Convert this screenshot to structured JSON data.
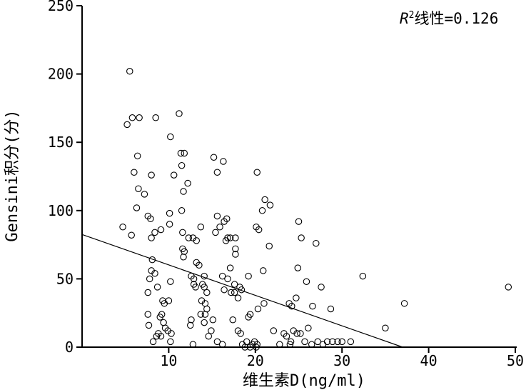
{
  "chart_data": {
    "type": "scatter",
    "xlabel": "维生素D(ng/ml)",
    "ylabel": "Gensini积分(分)",
    "xlim": [
      0,
      50
    ],
    "ylim": [
      0,
      250
    ],
    "x_ticks": [
      "10",
      "20",
      "30",
      "40",
      "50"
    ],
    "y_ticks": [
      "0",
      "50",
      "100",
      "150",
      "200",
      "250"
    ],
    "annotation": {
      "r": "R",
      "sup": "2",
      "rest": "线性=0.126"
    },
    "grid": false,
    "marker": "open-circle",
    "fit_line": {
      "x": [
        0,
        37
      ],
      "y": [
        82.5,
        0
      ]
    },
    "points": [
      [
        5.5,
        202
      ],
      [
        5.2,
        163
      ],
      [
        5.8,
        168
      ],
      [
        6.6,
        168
      ],
      [
        8.5,
        168
      ],
      [
        11.2,
        171
      ],
      [
        10.2,
        154
      ],
      [
        6.4,
        140
      ],
      [
        11.4,
        142
      ],
      [
        11.8,
        142
      ],
      [
        6,
        128
      ],
      [
        8,
        126
      ],
      [
        10.6,
        126
      ],
      [
        11.5,
        133
      ],
      [
        6.5,
        116
      ],
      [
        7.2,
        112
      ],
      [
        11.7,
        114
      ],
      [
        12.2,
        120
      ],
      [
        15.2,
        139
      ],
      [
        16.3,
        136
      ],
      [
        15.6,
        128
      ],
      [
        20.2,
        128
      ],
      [
        6.3,
        102
      ],
      [
        4.7,
        88
      ],
      [
        5.7,
        82
      ],
      [
        7.6,
        96
      ],
      [
        7.9,
        94
      ],
      [
        10.1,
        98
      ],
      [
        11.5,
        100
      ],
      [
        9.1,
        86
      ],
      [
        10.1,
        90
      ],
      [
        11.6,
        84
      ],
      [
        12.3,
        80
      ],
      [
        12.8,
        80
      ],
      [
        8,
        80
      ],
      [
        8.4,
        84
      ],
      [
        13.2,
        78
      ],
      [
        13.7,
        88
      ],
      [
        15.4,
        84
      ],
      [
        15.6,
        96
      ],
      [
        16.7,
        94
      ],
      [
        15.9,
        88
      ],
      [
        16.8,
        80
      ],
      [
        17.1,
        80
      ],
      [
        17.7,
        80
      ],
      [
        16.4,
        92
      ],
      [
        16.6,
        78
      ],
      [
        21.1,
        108
      ],
      [
        21.7,
        104
      ],
      [
        20.8,
        100
      ],
      [
        20.1,
        88
      ],
      [
        20.4,
        86
      ],
      [
        21.6,
        74
      ],
      [
        25,
        92
      ],
      [
        25.3,
        80
      ],
      [
        27,
        76
      ],
      [
        8.1,
        64
      ],
      [
        8,
        56
      ],
      [
        7.8,
        50
      ],
      [
        8.4,
        54
      ],
      [
        7.6,
        40
      ],
      [
        8.7,
        44
      ],
      [
        10.2,
        48
      ],
      [
        11.7,
        66
      ],
      [
        11.6,
        72
      ],
      [
        11.8,
        70
      ],
      [
        12.6,
        52
      ],
      [
        12.9,
        50
      ],
      [
        13.2,
        62
      ],
      [
        13.5,
        60
      ],
      [
        14.1,
        52
      ],
      [
        13.1,
        44
      ],
      [
        12.9,
        46
      ],
      [
        13.9,
        46
      ],
      [
        14.1,
        44
      ],
      [
        14.4,
        40
      ],
      [
        16.2,
        52
      ],
      [
        16.4,
        42
      ],
      [
        16.8,
        50
      ],
      [
        17.1,
        58
      ],
      [
        17.7,
        72
      ],
      [
        17.7,
        68
      ],
      [
        17.6,
        46
      ],
      [
        17.2,
        40
      ],
      [
        17.6,
        40
      ],
      [
        18.2,
        44
      ],
      [
        18.4,
        42
      ],
      [
        19.2,
        52
      ],
      [
        18,
        36
      ],
      [
        20.9,
        56
      ],
      [
        21,
        32
      ],
      [
        20.3,
        28
      ],
      [
        23.9,
        32
      ],
      [
        24.2,
        30
      ],
      [
        24.7,
        36
      ],
      [
        24.9,
        58
      ],
      [
        25.9,
        48
      ],
      [
        26.6,
        30
      ],
      [
        27.6,
        44
      ],
      [
        28.7,
        28
      ],
      [
        32.4,
        52
      ],
      [
        37.2,
        32
      ],
      [
        35,
        14
      ],
      [
        49.2,
        44
      ],
      [
        7.6,
        24
      ],
      [
        7.7,
        16
      ],
      [
        8.2,
        4
      ],
      [
        8.6,
        8
      ],
      [
        8.8,
        10
      ],
      [
        9.2,
        24
      ],
      [
        9.3,
        34
      ],
      [
        9.6,
        14
      ],
      [
        9.9,
        12
      ],
      [
        10,
        34
      ],
      [
        9.5,
        32
      ],
      [
        9,
        22
      ],
      [
        9.4,
        18
      ],
      [
        9.1,
        8
      ],
      [
        10.3,
        10
      ],
      [
        10.2,
        4
      ],
      [
        12.5,
        16
      ],
      [
        12.6,
        20
      ],
      [
        12.8,
        2
      ],
      [
        13.7,
        24
      ],
      [
        14.1,
        18
      ],
      [
        14.2,
        24
      ],
      [
        13.8,
        34
      ],
      [
        14.6,
        8
      ],
      [
        14.9,
        12
      ],
      [
        15.1,
        20
      ],
      [
        15.6,
        4
      ],
      [
        16.2,
        2
      ],
      [
        14.4,
        28
      ],
      [
        14.2,
        32
      ],
      [
        17.4,
        20
      ],
      [
        18,
        12
      ],
      [
        18.3,
        10
      ],
      [
        18.5,
        2
      ],
      [
        19,
        4
      ],
      [
        19.2,
        22
      ],
      [
        19.4,
        24
      ],
      [
        19.7,
        2
      ],
      [
        19.9,
        4
      ],
      [
        20.1,
        0
      ],
      [
        20.2,
        2
      ],
      [
        19.4,
        0
      ],
      [
        18.8,
        0
      ],
      [
        22.1,
        12
      ],
      [
        23.3,
        10
      ],
      [
        23.6,
        8
      ],
      [
        24.1,
        4
      ],
      [
        24.4,
        12
      ],
      [
        24.8,
        10
      ],
      [
        25.2,
        10
      ],
      [
        25.7,
        4
      ],
      [
        26.1,
        14
      ],
      [
        26.5,
        2
      ],
      [
        27.2,
        4
      ],
      [
        27.8,
        2
      ],
      [
        28.3,
        4
      ],
      [
        28.9,
        4
      ],
      [
        29.5,
        4
      ],
      [
        30,
        4
      ],
      [
        31,
        4
      ],
      [
        24,
        2
      ],
      [
        22.8,
        2
      ]
    ]
  }
}
